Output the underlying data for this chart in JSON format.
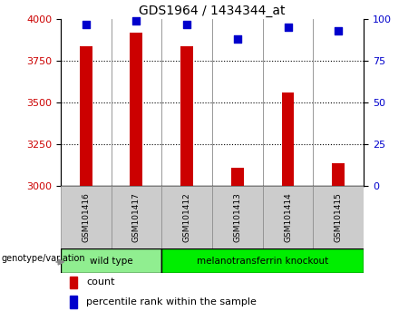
{
  "title": "GDS1964 / 1434344_at",
  "samples": [
    "GSM101416",
    "GSM101417",
    "GSM101412",
    "GSM101413",
    "GSM101414",
    "GSM101415"
  ],
  "counts": [
    3840,
    3920,
    3840,
    3110,
    3560,
    3140
  ],
  "percentile_ranks": [
    97,
    99,
    97,
    88,
    95,
    93
  ],
  "ylim_left": [
    3000,
    4000
  ],
  "ylim_right": [
    0,
    100
  ],
  "yticks_left": [
    3000,
    3250,
    3500,
    3750,
    4000
  ],
  "yticks_right": [
    0,
    25,
    50,
    75,
    100
  ],
  "bar_color": "#cc0000",
  "dot_color": "#0000cc",
  "groups": [
    {
      "label": "wild type",
      "indices": [
        0,
        1
      ],
      "color": "#90ee90"
    },
    {
      "label": "melanotransferrin knockout",
      "indices": [
        2,
        3,
        4,
        5
      ],
      "color": "#00ee00"
    }
  ],
  "group_label": "genotype/variation",
  "legend_count_label": "count",
  "legend_percentile_label": "percentile rank within the sample",
  "tick_label_color_left": "#cc0000",
  "tick_label_color_right": "#0000cc",
  "bar_bottom": 3000,
  "dot_size": 40,
  "bar_width": 0.25
}
